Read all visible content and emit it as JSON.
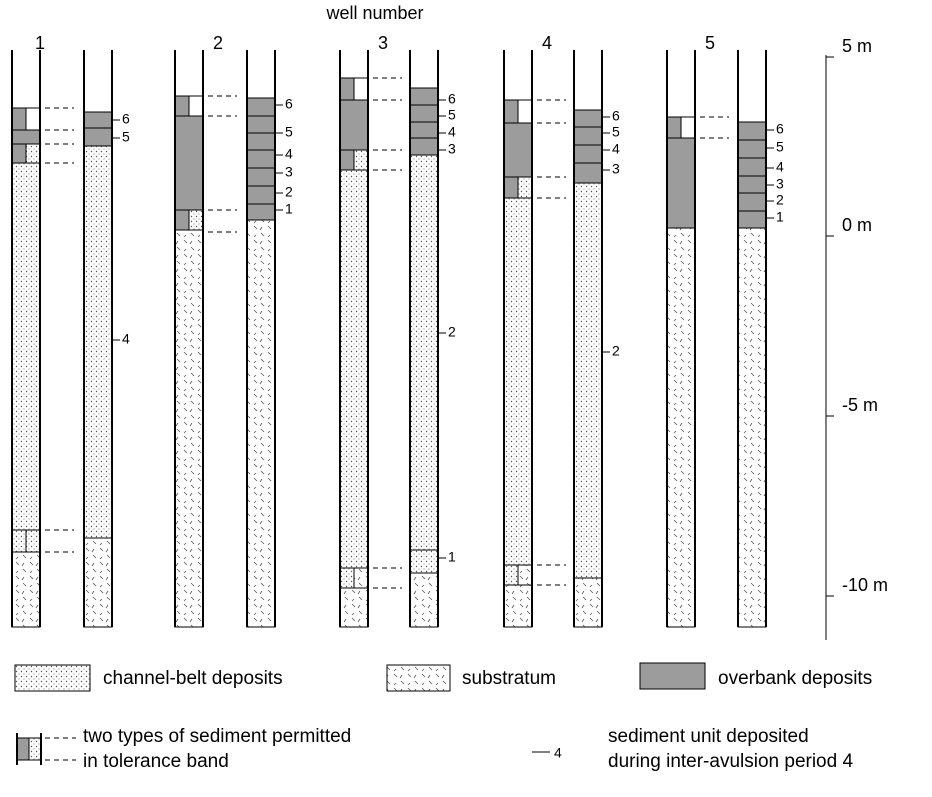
{
  "title": "well number",
  "wells": [
    "1",
    "2",
    "3",
    "4",
    "5"
  ],
  "depth_labels": [
    "5 m",
    "0 m",
    "-5 m",
    "-10 m"
  ],
  "columns": [
    {
      "labels": [
        "6",
        "5",
        "4"
      ]
    },
    {
      "labels": [
        "6",
        "5",
        "4",
        "3",
        "2",
        "1"
      ]
    },
    {
      "labels": [
        "6",
        "5",
        "4",
        "3",
        "2",
        "1"
      ]
    },
    {
      "labels": [
        "6",
        "5",
        "4",
        "3",
        "2"
      ]
    },
    {
      "labels": [
        "6",
        "5",
        "4",
        "3",
        "2",
        "1"
      ]
    }
  ],
  "legend": {
    "channel_belt": "channel-belt deposits",
    "substratum": "substratum",
    "overbank": "overbank deposits",
    "tolerance": [
      "two types of sediment permitted",
      "in tolerance band"
    ],
    "unit_symbol": "4",
    "unit": [
      "sediment unit deposited",
      "during inter-avulsion period 4"
    ]
  }
}
